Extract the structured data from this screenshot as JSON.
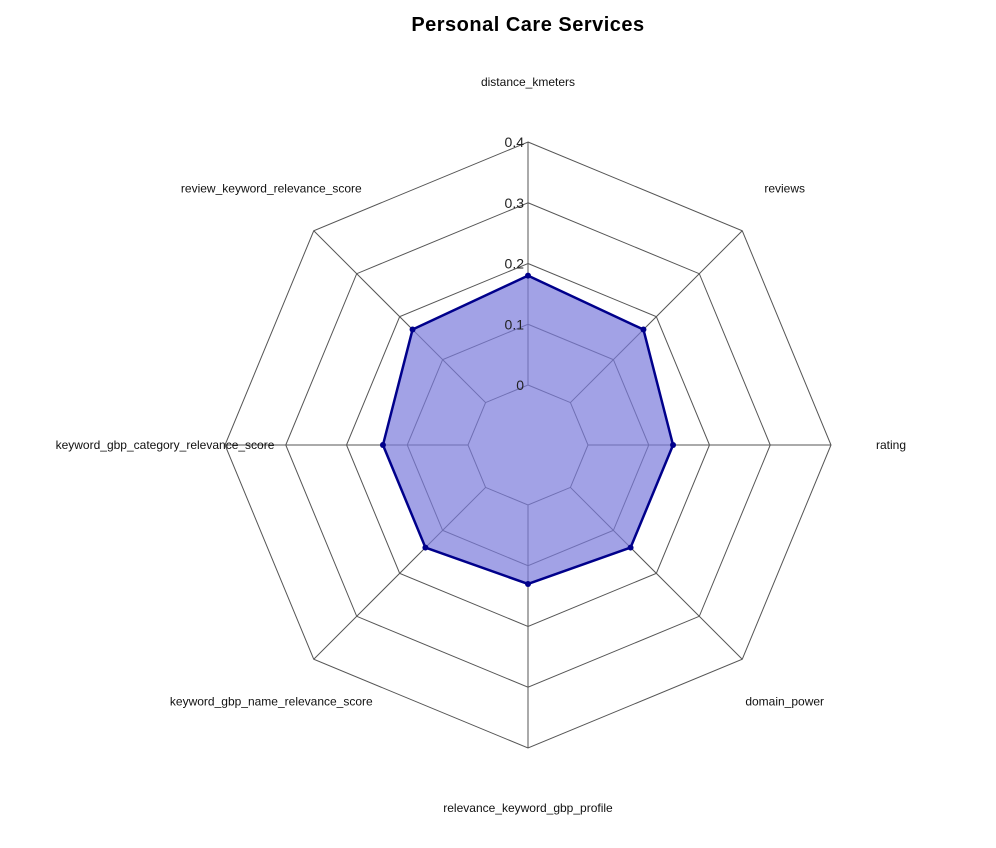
{
  "chart_data": {
    "type": "radar",
    "title": "Personal Care Services",
    "axes": [
      "distance_kmeters",
      "reviews",
      "rating",
      "domain_power",
      "relevance_keyword_gbp_profile",
      "keyword_gbp_name_relevance_score",
      "keyword_gbp_category_relevance_score",
      "review_keyword_relevance_score"
    ],
    "rlim": [
      0,
      0.4
    ],
    "ticks": [
      "0",
      "0.1",
      "0.2",
      "0.3",
      "0.4"
    ],
    "series": [
      {
        "values": [
          0.18,
          0.17,
          0.14,
          0.14,
          0.13,
          0.14,
          0.14,
          0.17
        ]
      }
    ],
    "grid": true,
    "colors": {
      "line": "#00008b",
      "fill": "#7b7bdb",
      "grid": "#555555"
    }
  }
}
